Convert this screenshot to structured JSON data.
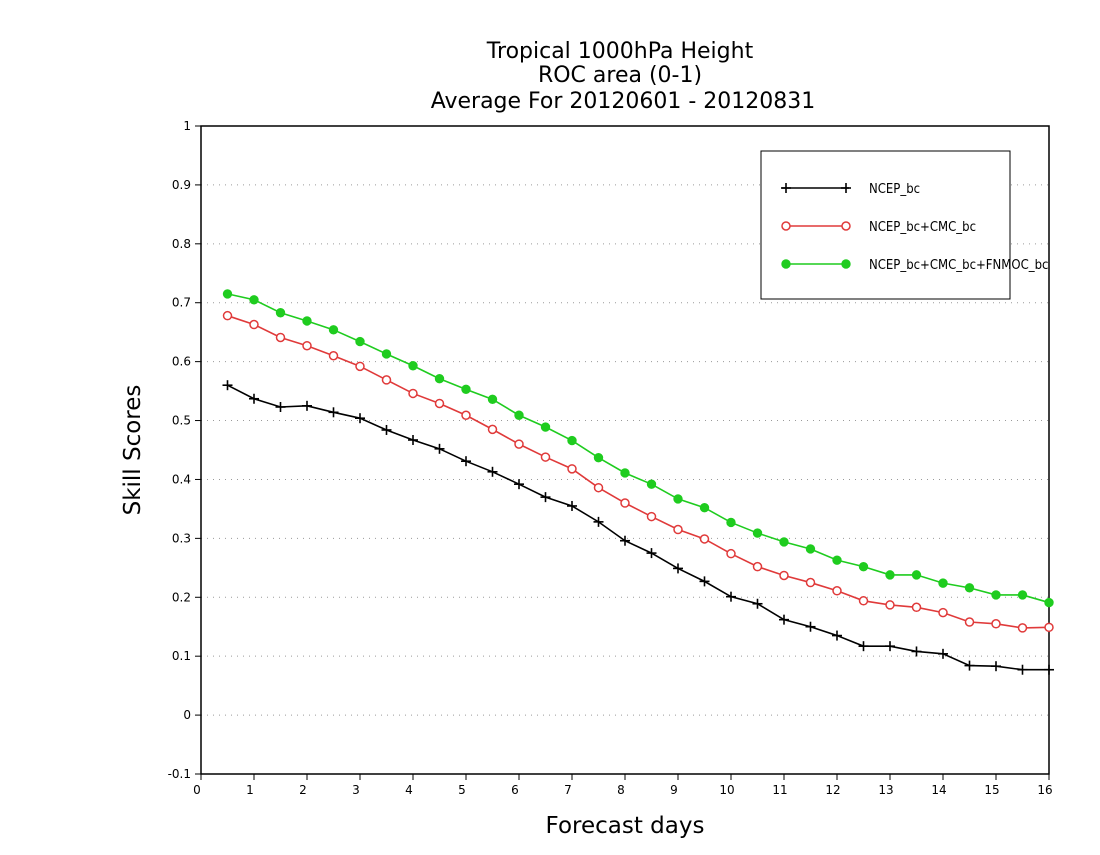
{
  "chart_data": {
    "type": "line",
    "title": [
      "Tropical 1000hPa Height",
      "ROC area (0-1)",
      "Average For 20120601 - 20120831"
    ],
    "xlabel": "Forecast days",
    "ylabel": "Skill Scores",
    "xlim": [
      0,
      16
    ],
    "ylim": [
      -0.1,
      1
    ],
    "xticks": [
      0,
      1,
      2,
      3,
      4,
      5,
      6,
      7,
      8,
      9,
      10,
      11,
      12,
      13,
      14,
      15,
      16
    ],
    "yticks": [
      -0.1,
      0,
      0.1,
      0.2,
      0.3,
      0.4,
      0.5,
      0.6,
      0.7,
      0.8,
      0.9,
      1
    ],
    "ytick_labels": [
      "-0.1",
      "0",
      "0.1",
      "0.2",
      "0.3",
      "0.4",
      "0.5",
      "0.6",
      "0.7",
      "0.8",
      "0.9",
      "1"
    ],
    "grid": "horizontal dotted",
    "legend_position": "top-right",
    "x": [
      0.5,
      1,
      1.5,
      2,
      2.5,
      3,
      3.5,
      4,
      4.5,
      5,
      5.5,
      6,
      6.5,
      7,
      7.5,
      8,
      8.5,
      9,
      9.5,
      10,
      10.5,
      11,
      11.5,
      12,
      12.5,
      13,
      13.5,
      14,
      14.5,
      15,
      15.5,
      16
    ],
    "series": [
      {
        "name": "NCEP_bc",
        "color": "#000000",
        "marker": "plus",
        "values": [
          0.56,
          0.537,
          0.523,
          0.525,
          0.514,
          0.504,
          0.484,
          0.467,
          0.452,
          0.431,
          0.413,
          0.392,
          0.37,
          0.355,
          0.328,
          0.296,
          0.275,
          0.249,
          0.227,
          0.201,
          0.189,
          0.162,
          0.15,
          0.135,
          0.117,
          0.117,
          0.108,
          0.104,
          0.084,
          0.083,
          0.077,
          0.077
        ]
      },
      {
        "name": "NCEP_bc+CMC_bc",
        "color": "#e03a3a",
        "marker": "open-circle",
        "values": [
          0.678,
          0.663,
          0.641,
          0.627,
          0.61,
          0.592,
          0.569,
          0.546,
          0.529,
          0.509,
          0.485,
          0.46,
          0.438,
          0.418,
          0.386,
          0.36,
          0.337,
          0.315,
          0.299,
          0.274,
          0.252,
          0.237,
          0.225,
          0.211,
          0.194,
          0.187,
          0.183,
          0.174,
          0.158,
          0.155,
          0.148,
          0.149
        ]
      },
      {
        "name": "NCEP_bc+CMC_bc+FNMOC_bc",
        "color": "#1fcc1f",
        "marker": "filled-circle",
        "values": [
          0.715,
          0.705,
          0.683,
          0.669,
          0.654,
          0.634,
          0.613,
          0.593,
          0.571,
          0.553,
          0.536,
          0.509,
          0.489,
          0.466,
          0.437,
          0.411,
          0.392,
          0.367,
          0.352,
          0.327,
          0.309,
          0.294,
          0.282,
          0.263,
          0.252,
          0.238,
          0.238,
          0.224,
          0.216,
          0.204,
          0.204,
          0.191
        ]
      }
    ]
  }
}
